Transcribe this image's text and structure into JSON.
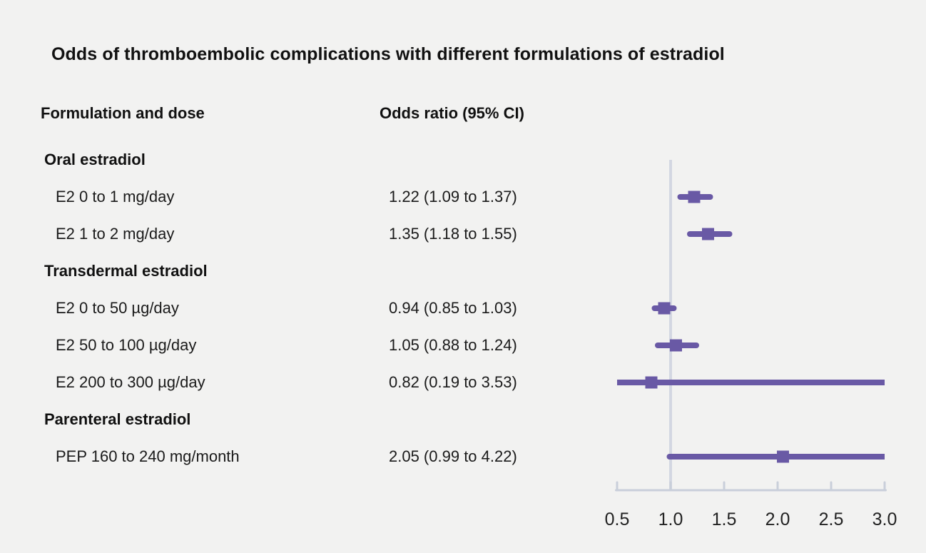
{
  "chart_data": {
    "type": "forest",
    "title": "Odds of thromboembolic complications with different formulations of estradiol",
    "columns": {
      "label_header": "Formulation and dose",
      "value_header": "Odds ratio (95% CI)"
    },
    "x_axis": {
      "tick_labels": [
        "0.5",
        "1.0",
        "1.5",
        "2.0",
        "2.5",
        "3.0"
      ],
      "tick_values": [
        0.5,
        1.0,
        1.5,
        2.0,
        2.5,
        3.0
      ],
      "range": [
        0.5,
        3.0
      ],
      "reference_line": 1.0
    },
    "rows": [
      {
        "type": "group",
        "label": "Oral estradiol"
      },
      {
        "type": "item",
        "label": "E2 0 to 1 mg/day",
        "value_text": "1.22 (1.09 to 1.37)",
        "or": 1.22,
        "lo": 1.09,
        "hi": 1.37
      },
      {
        "type": "item",
        "label": "E2 1 to 2 mg/day",
        "value_text": "1.35 (1.18 to 1.55)",
        "or": 1.35,
        "lo": 1.18,
        "hi": 1.55
      },
      {
        "type": "group",
        "label": "Transdermal estradiol"
      },
      {
        "type": "item",
        "label": "E2 0 to 50 µg/day",
        "value_text": "0.94 (0.85 to 1.03)",
        "or": 0.94,
        "lo": 0.85,
        "hi": 1.03
      },
      {
        "type": "item",
        "label": "E2 50 to 100 µg/day",
        "value_text": "1.05 (0.88 to 1.24)",
        "or": 1.05,
        "lo": 0.88,
        "hi": 1.24
      },
      {
        "type": "item",
        "label": "E2 200 to 300 µg/day",
        "value_text": "0.82 (0.19 to 3.53)",
        "or": 0.82,
        "lo": 0.19,
        "hi": 3.53
      },
      {
        "type": "group",
        "label": "Parenteral estradiol"
      },
      {
        "type": "item",
        "label": "PEP 160 to 240 mg/month",
        "value_text": "2.05 (0.99 to 4.22)",
        "or": 2.05,
        "lo": 0.99,
        "hi": 4.22
      }
    ],
    "colors": {
      "marker": "#6959a5",
      "reference_line": "#d3d7e2",
      "axis": "#c9cfda",
      "tick_text": "#222222",
      "background": "#f2f2f1"
    }
  }
}
